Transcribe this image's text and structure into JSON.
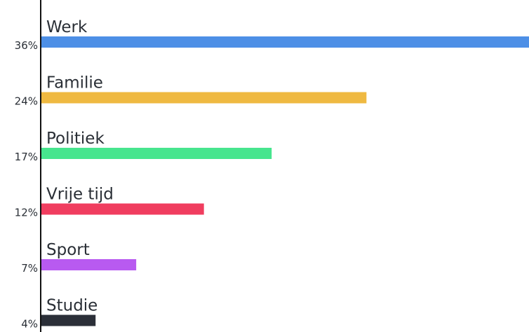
{
  "chart_data": {
    "type": "bar",
    "orientation": "horizontal",
    "categories": [
      "Werk",
      "Familie",
      "Politiek",
      "Vrije tijd",
      "Sport",
      "Studie"
    ],
    "values": [
      36,
      24,
      17,
      12,
      7,
      4
    ],
    "value_labels": [
      "36%",
      "24%",
      "17%",
      "12%",
      "7%",
      "4%"
    ],
    "colors": [
      "#4d8fe6",
      "#efb941",
      "#47e58e",
      "#f03d5f",
      "#b85af0",
      "#2b2f38"
    ],
    "unit": "%",
    "xlim": [
      0,
      36
    ],
    "grid": false,
    "legend": "none"
  }
}
